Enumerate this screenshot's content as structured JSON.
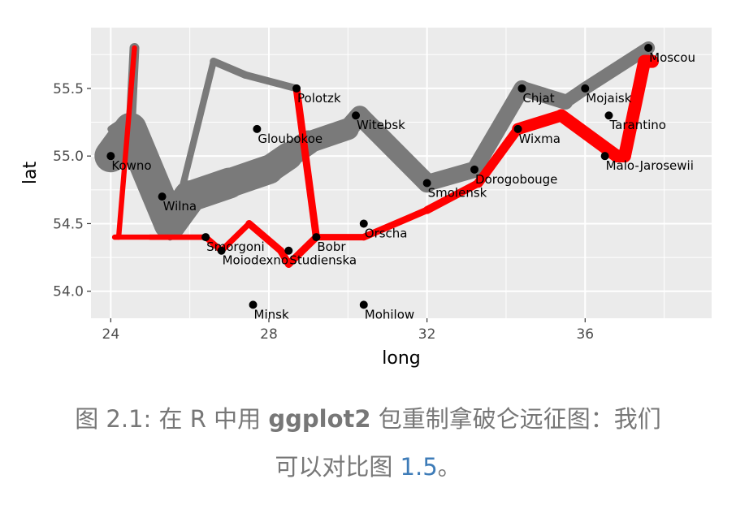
{
  "chart_data": {
    "type": "line",
    "xlabel": "long",
    "ylabel": "lat",
    "xlim": [
      23.5,
      39.2
    ],
    "ylim": [
      53.8,
      55.95
    ],
    "x_ticks": [
      24,
      28,
      32,
      36
    ],
    "y_ticks": [
      54.0,
      54.5,
      55.0,
      55.5
    ],
    "grid": true,
    "background": "#ebebeb",
    "colors": {
      "advance": "#7a7a7a",
      "retreat": "#ff0000",
      "cities": "#000000",
      "grid": "#ffffff"
    },
    "series": [
      {
        "direction": "advance",
        "x": [
          24.0,
          24.5,
          25.5,
          26.0,
          27.0,
          28.0,
          28.5,
          29.0,
          30.0,
          30.3,
          32.0,
          33.2,
          34.4,
          35.5,
          36.0,
          37.6
        ],
        "y": [
          55.0,
          55.2,
          54.5,
          54.7,
          54.8,
          54.9,
          55.0,
          55.1,
          55.2,
          55.3,
          54.8,
          54.9,
          55.5,
          55.4,
          55.5,
          55.8
        ],
        "survivors": [
          340000,
          340000,
          340000,
          320000,
          300000,
          280000,
          240000,
          210000,
          180000,
          175000,
          145000,
          140000,
          127100,
          100000,
          100000,
          100000
        ]
      },
      {
        "direction": "retreat",
        "x": [
          37.7,
          37.5,
          37.0,
          36.8,
          35.4,
          34.3,
          33.3,
          32.0,
          30.4,
          29.2,
          28.5,
          28.3,
          27.5,
          26.8,
          26.4,
          25.0,
          24.1
        ],
        "y": [
          55.7,
          55.7,
          55.0,
          55.0,
          55.3,
          55.2,
          54.8,
          54.6,
          54.4,
          54.4,
          54.2,
          54.3,
          54.5,
          54.3,
          54.4,
          54.4,
          54.4
        ],
        "survivors": [
          100000,
          98000,
          97000,
          96000,
          87000,
          55000,
          37000,
          24000,
          20000,
          20000,
          20000,
          28000,
          12000,
          14000,
          8000,
          4000,
          4000
        ]
      },
      {
        "direction": "advance",
        "x": [
          24.0,
          24.5,
          24.6
        ],
        "y": [
          55.1,
          55.2,
          55.8
        ],
        "survivors": [
          60000,
          60000,
          60000
        ]
      },
      {
        "direction": "retreat",
        "x": [
          24.6,
          24.2,
          24.1
        ],
        "y": [
          55.8,
          54.4,
          54.4
        ],
        "survivors": [
          4000,
          4000,
          4000
        ]
      },
      {
        "direction": "advance",
        "x": [
          24.0,
          24.5,
          25.5,
          26.6,
          27.4,
          28.7
        ],
        "y": [
          55.2,
          55.3,
          54.4,
          55.7,
          55.6,
          55.5
        ],
        "survivors": [
          22000,
          22000,
          22000,
          33000,
          30000,
          30000
        ]
      },
      {
        "direction": "retreat",
        "x": [
          28.7,
          28.7,
          29.2,
          28.5,
          28.3
        ],
        "y": [
          55.5,
          55.5,
          54.4,
          54.2,
          54.3
        ],
        "survivors": [
          30000,
          30000,
          30000,
          30000,
          28000
        ]
      }
    ],
    "cities": [
      {
        "name": "Kowno",
        "long": 24.0,
        "lat": 55.0
      },
      {
        "name": "Wilna",
        "long": 25.3,
        "lat": 54.7
      },
      {
        "name": "Smorgoni",
        "long": 26.4,
        "lat": 54.4
      },
      {
        "name": "Moiodexno",
        "long": 26.8,
        "lat": 54.3
      },
      {
        "name": "Gloubokoe",
        "long": 27.7,
        "lat": 55.2
      },
      {
        "name": "Minsk",
        "long": 27.6,
        "lat": 53.9
      },
      {
        "name": "Studienska",
        "long": 28.5,
        "lat": 54.3
      },
      {
        "name": "Polotzk",
        "long": 28.7,
        "lat": 55.5
      },
      {
        "name": "Bobr",
        "long": 29.2,
        "lat": 54.4
      },
      {
        "name": "Witebsk",
        "long": 30.2,
        "lat": 55.3
      },
      {
        "name": "Orscha",
        "long": 30.4,
        "lat": 54.5
      },
      {
        "name": "Mohilow",
        "long": 30.4,
        "lat": 53.9
      },
      {
        "name": "Smolensk",
        "long": 32.0,
        "lat": 54.8
      },
      {
        "name": "Dorogobouge",
        "long": 33.2,
        "lat": 54.9
      },
      {
        "name": "Wixma",
        "long": 34.3,
        "lat": 55.2
      },
      {
        "name": "Chjat",
        "long": 34.4,
        "lat": 55.5
      },
      {
        "name": "Mojaisk",
        "long": 36.0,
        "lat": 55.5
      },
      {
        "name": "Tarantino",
        "long": 36.6,
        "lat": 55.3
      },
      {
        "name": "Malo-Jarosewii",
        "long": 36.5,
        "lat": 55.0
      },
      {
        "name": "Moscou",
        "long": 37.6,
        "lat": 55.8
      }
    ]
  },
  "caption": {
    "prefix": "图 2.1: 在 R 中用 ",
    "package": "ggplot2",
    "middle": " 包重制拿破仑远征图：我们",
    "line2": "可以对比图 ",
    "ref": "1.5",
    "suffix": "。"
  }
}
